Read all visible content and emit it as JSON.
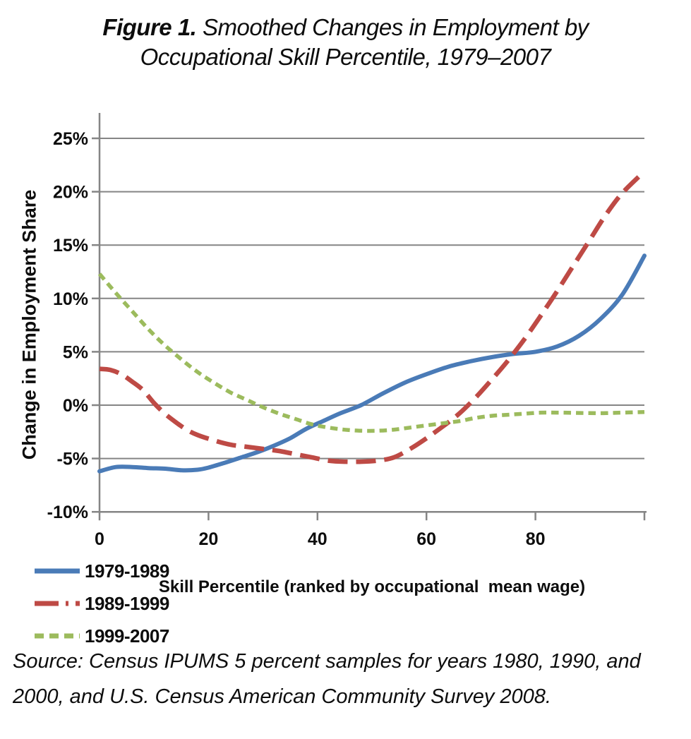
{
  "figure": {
    "title_prefix": "Figure 1.",
    "title_line1_rest": " Smoothed Changes in Employment by",
    "title_line2": "Occupational Skill Percentile, 1979–2007",
    "source_line1": "Source: Census IPUMS 5 percent samples for years 1980, 1990, and",
    "source_line2": "2000, and U.S. Census American Community Survey 2008."
  },
  "chart_data": {
    "type": "line",
    "title": "Smoothed Changes in Employment by Occupational Skill Percentile, 1979-2007",
    "xlabel": "Skill Percentile (ranked by occupational  mean wage)",
    "ylabel": "Change in Employment Share",
    "xlim": [
      0,
      100
    ],
    "ylim": [
      -10,
      25
    ],
    "grid": "horizontal",
    "legend_position": "bottom-left",
    "colors": {
      "gridline": "#858585",
      "axis": "#858585",
      "text": "#0d0d0d"
    },
    "y_ticks": [
      {
        "value": 25,
        "label": "25%"
      },
      {
        "value": 20,
        "label": "20%"
      },
      {
        "value": 15,
        "label": "15%"
      },
      {
        "value": 10,
        "label": "10%"
      },
      {
        "value": 5,
        "label": "5%"
      },
      {
        "value": 0,
        "label": "0%"
      },
      {
        "value": -5,
        "label": "-5%"
      },
      {
        "value": -10,
        "label": "-10%"
      }
    ],
    "x_ticks": [
      {
        "value": 0,
        "label": "0"
      },
      {
        "value": 20,
        "label": "20"
      },
      {
        "value": 40,
        "label": "40"
      },
      {
        "value": 60,
        "label": "60"
      },
      {
        "value": 80,
        "label": "80"
      },
      {
        "value": 100,
        "label": ""
      }
    ],
    "series": [
      {
        "name": "1979-1989",
        "color": "#4A7BB7",
        "style": "solid",
        "x": [
          0,
          3,
          6,
          9,
          12,
          15,
          18,
          20,
          23,
          26,
          29,
          32,
          35,
          38,
          41,
          44,
          48,
          52,
          56,
          60,
          64,
          68,
          72,
          76,
          80,
          84,
          88,
          92,
          96,
          100
        ],
        "y": [
          -6.2,
          -5.8,
          -5.8,
          -5.9,
          -5.95,
          -6.1,
          -6.05,
          -5.85,
          -5.4,
          -4.9,
          -4.4,
          -3.8,
          -3.1,
          -2.2,
          -1.5,
          -0.8,
          0.0,
          1.1,
          2.1,
          2.9,
          3.6,
          4.1,
          4.5,
          4.8,
          5.0,
          5.5,
          6.5,
          8.1,
          10.4,
          14.0
        ]
      },
      {
        "name": "1989-1999",
        "color": "#BE4A45",
        "style": "long-dash-dot",
        "x": [
          0,
          2,
          4,
          6,
          8,
          10,
          12,
          14,
          16,
          18,
          21,
          24,
          27,
          30,
          33,
          36,
          39,
          42,
          45,
          48,
          51,
          54,
          57,
          60,
          63,
          66,
          69,
          72,
          75,
          78,
          81,
          84,
          87,
          90,
          93,
          96,
          100
        ],
        "y": [
          3.4,
          3.3,
          2.9,
          2.2,
          1.4,
          0.2,
          -0.8,
          -1.6,
          -2.3,
          -2.8,
          -3.3,
          -3.7,
          -3.9,
          -4.1,
          -4.3,
          -4.6,
          -4.9,
          -5.2,
          -5.3,
          -5.3,
          -5.2,
          -4.9,
          -4.1,
          -3.1,
          -2.0,
          -0.8,
          0.7,
          2.4,
          4.2,
          6.2,
          8.4,
          10.7,
          13.1,
          15.5,
          17.9,
          19.9,
          21.9
        ]
      },
      {
        "name": "1999-2007",
        "color": "#9CBB5D",
        "style": "short-dash",
        "x": [
          0,
          3,
          6,
          9,
          12,
          15,
          18,
          21,
          24,
          27,
          30,
          33,
          36,
          39,
          42,
          45,
          48,
          51,
          54,
          57,
          60,
          63,
          66,
          69,
          72,
          75,
          78,
          81,
          84,
          87,
          90,
          93,
          96,
          100
        ],
        "y": [
          12.3,
          10.5,
          8.8,
          7.1,
          5.6,
          4.3,
          3.1,
          2.1,
          1.2,
          0.5,
          -0.2,
          -0.8,
          -1.3,
          -1.8,
          -2.1,
          -2.3,
          -2.4,
          -2.4,
          -2.3,
          -2.1,
          -1.9,
          -1.7,
          -1.5,
          -1.2,
          -1.0,
          -0.9,
          -0.8,
          -0.7,
          -0.7,
          -0.72,
          -0.75,
          -0.75,
          -0.7,
          -0.65
        ]
      }
    ]
  }
}
